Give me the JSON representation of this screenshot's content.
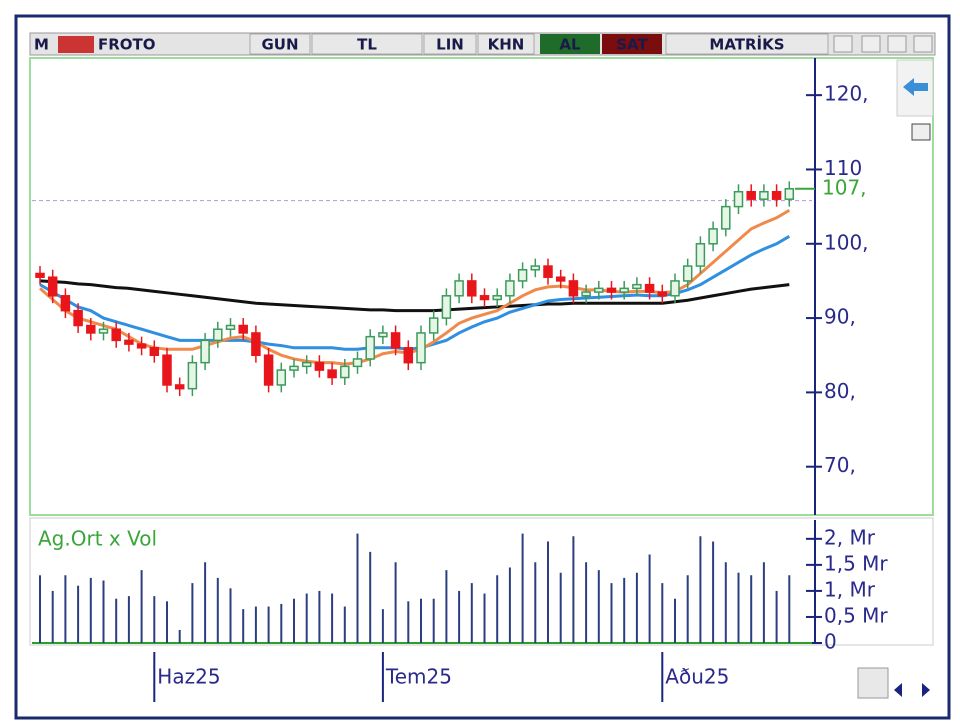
{
  "toolbar": {
    "logo": "M",
    "symbol": "FROTO",
    "buttons": [
      "GUN",
      "TL",
      "LIN",
      "KHN"
    ],
    "buy": "AL",
    "sell": "SAT",
    "brand": "MATRİKS"
  },
  "chart_data": {
    "type": "candlestick",
    "categories": [
      null,
      null,
      null,
      null,
      null,
      null,
      null,
      null,
      null,
      "Haz25",
      null,
      null,
      null,
      null,
      null,
      null,
      null,
      null,
      null,
      null,
      null,
      null,
      null,
      null,
      null,
      null,
      null,
      "Tem25",
      null,
      null,
      null,
      null,
      null,
      null,
      null,
      null,
      null,
      null,
      null,
      null,
      null,
      null,
      null,
      null,
      null,
      null,
      null,
      null,
      null,
      "Aðu25",
      null,
      null,
      null,
      null,
      null,
      null,
      null,
      null,
      null,
      null
    ],
    "open": [
      96,
      95.5,
      93,
      91,
      89,
      88,
      88.5,
      87,
      86.5,
      86,
      85,
      81,
      80.5,
      84,
      87,
      88.5,
      89,
      88,
      85,
      81,
      83,
      83.5,
      84,
      83,
      82,
      83.5,
      84.5,
      87.5,
      88,
      86,
      84,
      88,
      90,
      93,
      95,
      93,
      92.5,
      93,
      95,
      96.5,
      97,
      95.5,
      95,
      93,
      93.5,
      94,
      93.5,
      94,
      94.5,
      93.5,
      93,
      95,
      97,
      100,
      102,
      105,
      107,
      106,
      107,
      106
    ],
    "high": [
      97,
      96.5,
      94,
      92,
      90,
      89.5,
      89.5,
      88,
      87.5,
      87,
      86,
      82,
      85,
      88,
      89.5,
      90,
      90,
      89,
      86,
      84,
      84.5,
      85,
      85,
      84,
      84.5,
      85.5,
      88.5,
      89,
      89,
      87,
      89,
      91,
      94,
      96,
      96,
      94,
      94,
      96,
      97.5,
      98,
      98,
      96.5,
      96,
      94.5,
      95,
      95,
      95,
      95.5,
      95.5,
      94.5,
      96,
      98,
      101,
      103,
      106,
      108,
      108,
      108,
      108,
      108.4
    ],
    "low": [
      94.5,
      92,
      90,
      88,
      87,
      87,
      86,
      85.5,
      85,
      84,
      80,
      79.5,
      79.5,
      83,
      86,
      87.5,
      87,
      84,
      80,
      80,
      82,
      82.5,
      82,
      81,
      81,
      82.5,
      83.5,
      86.5,
      85,
      83,
      83,
      87,
      89,
      92,
      92,
      91.5,
      91.5,
      92,
      94,
      95.5,
      94.5,
      94,
      92,
      92,
      92.5,
      92.5,
      92.5,
      93,
      92.5,
      92,
      92,
      94,
      96,
      99,
      101,
      104,
      105,
      105,
      105,
      105
    ],
    "close": [
      95.5,
      93,
      91,
      89,
      88,
      88.5,
      87,
      86.5,
      86,
      85,
      81,
      80.5,
      84,
      87,
      88.5,
      89,
      88,
      85,
      81,
      83,
      83.5,
      84,
      83,
      82,
      83.5,
      84.5,
      87.5,
      88,
      86,
      84,
      88,
      90,
      93,
      95,
      93,
      92.5,
      93,
      95,
      96.5,
      97,
      95.5,
      95,
      93,
      93.5,
      94,
      93.5,
      94,
      94.5,
      93.5,
      93,
      95,
      97,
      100,
      102,
      105,
      107,
      106,
      107,
      106,
      107.4
    ],
    "up_color": "#3c9a5c",
    "down_color": "#e8161b",
    "moving_averages": [
      {
        "color": "#111111",
        "values": [
          95,
          94.9,
          94.8,
          94.6,
          94.5,
          94.3,
          94.1,
          94,
          93.8,
          93.6,
          93.4,
          93.2,
          93,
          92.8,
          92.6,
          92.4,
          92.2,
          92,
          91.9,
          91.8,
          91.7,
          91.6,
          91.5,
          91.4,
          91.3,
          91.2,
          91.1,
          91.1,
          91,
          91,
          91,
          91,
          91.1,
          91.2,
          91.3,
          91.4,
          91.5,
          91.6,
          91.7,
          91.8,
          91.9,
          91.9,
          92,
          92,
          92,
          92,
          92,
          92,
          92,
          92,
          92.2,
          92.4,
          92.7,
          93,
          93.3,
          93.6,
          93.9,
          94.1,
          94.3,
          94.5
        ]
      },
      {
        "color": "#2f8fe0",
        "values": [
          94.5,
          93.5,
          92.5,
          91.5,
          91,
          90,
          89.5,
          89,
          88.5,
          88,
          87.5,
          87,
          87,
          87,
          87,
          87,
          87,
          86.8,
          86.5,
          86.3,
          86,
          86,
          86,
          86,
          85.8,
          85.8,
          86,
          86,
          86,
          85.8,
          86,
          86.5,
          87,
          88,
          88.8,
          89.5,
          90,
          90.8,
          91.3,
          91.8,
          92.3,
          92.5,
          92.6,
          92.7,
          92.8,
          92.9,
          93,
          93.1,
          93,
          93,
          93.3,
          93.8,
          94.5,
          95.5,
          96.5,
          97.5,
          98.5,
          99.3,
          100,
          101
        ]
      },
      {
        "color": "#f08a4b",
        "values": [
          94,
          92.5,
          91,
          90,
          89.5,
          89,
          88.5,
          87.5,
          86.5,
          86,
          85.8,
          85.8,
          85.8,
          86.3,
          86.8,
          87.3,
          87.5,
          86.8,
          85.8,
          85,
          84.5,
          84.2,
          84,
          84,
          83.8,
          84,
          84.5,
          85.2,
          85.5,
          85.3,
          85.8,
          86.8,
          88,
          89.3,
          90,
          90.5,
          91,
          92,
          93,
          93.8,
          94.2,
          94.3,
          94.1,
          93.8,
          93.8,
          93.6,
          93.5,
          93.6,
          93.6,
          93.4,
          93.6,
          94.5,
          96,
          97.5,
          99,
          100.5,
          102,
          102.8,
          103.5,
          104.5
        ]
      }
    ],
    "reference_line": 105.8,
    "last_price": {
      "value": 107.4,
      "label": "107,"
    },
    "ylim": [
      63.5,
      125
    ],
    "yticks": [
      {
        "value": 120,
        "label": "120,"
      },
      {
        "value": 110,
        "label": "110"
      },
      {
        "value": 100,
        "label": "100,"
      },
      {
        "value": 90,
        "label": "90,"
      },
      {
        "value": 80,
        "label": "80,"
      },
      {
        "value": 70,
        "label": "70,"
      }
    ],
    "volume": {
      "label": "Ag.Ort x Vol",
      "color": "#2c3e80",
      "values": [
        1.3,
        1.0,
        1.3,
        1.1,
        1.25,
        1.2,
        0.85,
        0.9,
        1.4,
        0.9,
        0.8,
        0.25,
        1.15,
        1.55,
        1.25,
        1.05,
        0.65,
        0.7,
        0.7,
        0.75,
        0.85,
        0.95,
        1.0,
        0.95,
        0.7,
        2.1,
        1.75,
        0.65,
        1.55,
        0.8,
        0.85,
        0.85,
        1.4,
        1.0,
        1.15,
        0.95,
        1.3,
        1.45,
        2.1,
        1.55,
        1.95,
        1.35,
        2.05,
        1.55,
        1.4,
        1.15,
        1.25,
        1.35,
        1.7,
        1.15,
        0.85,
        1.3,
        2.05,
        1.95,
        1.55,
        1.35,
        1.3,
        1.55,
        1.0,
        1.3
      ],
      "ylim": [
        0,
        2.4
      ],
      "yticks": [
        {
          "value": 2,
          "label": "2, Mr"
        },
        {
          "value": 1.5,
          "label": "1,5 Mr"
        },
        {
          "value": 1,
          "label": "1, Mr"
        },
        {
          "value": 0.5,
          "label": "0,5 Mr"
        },
        0
      ]
    }
  }
}
